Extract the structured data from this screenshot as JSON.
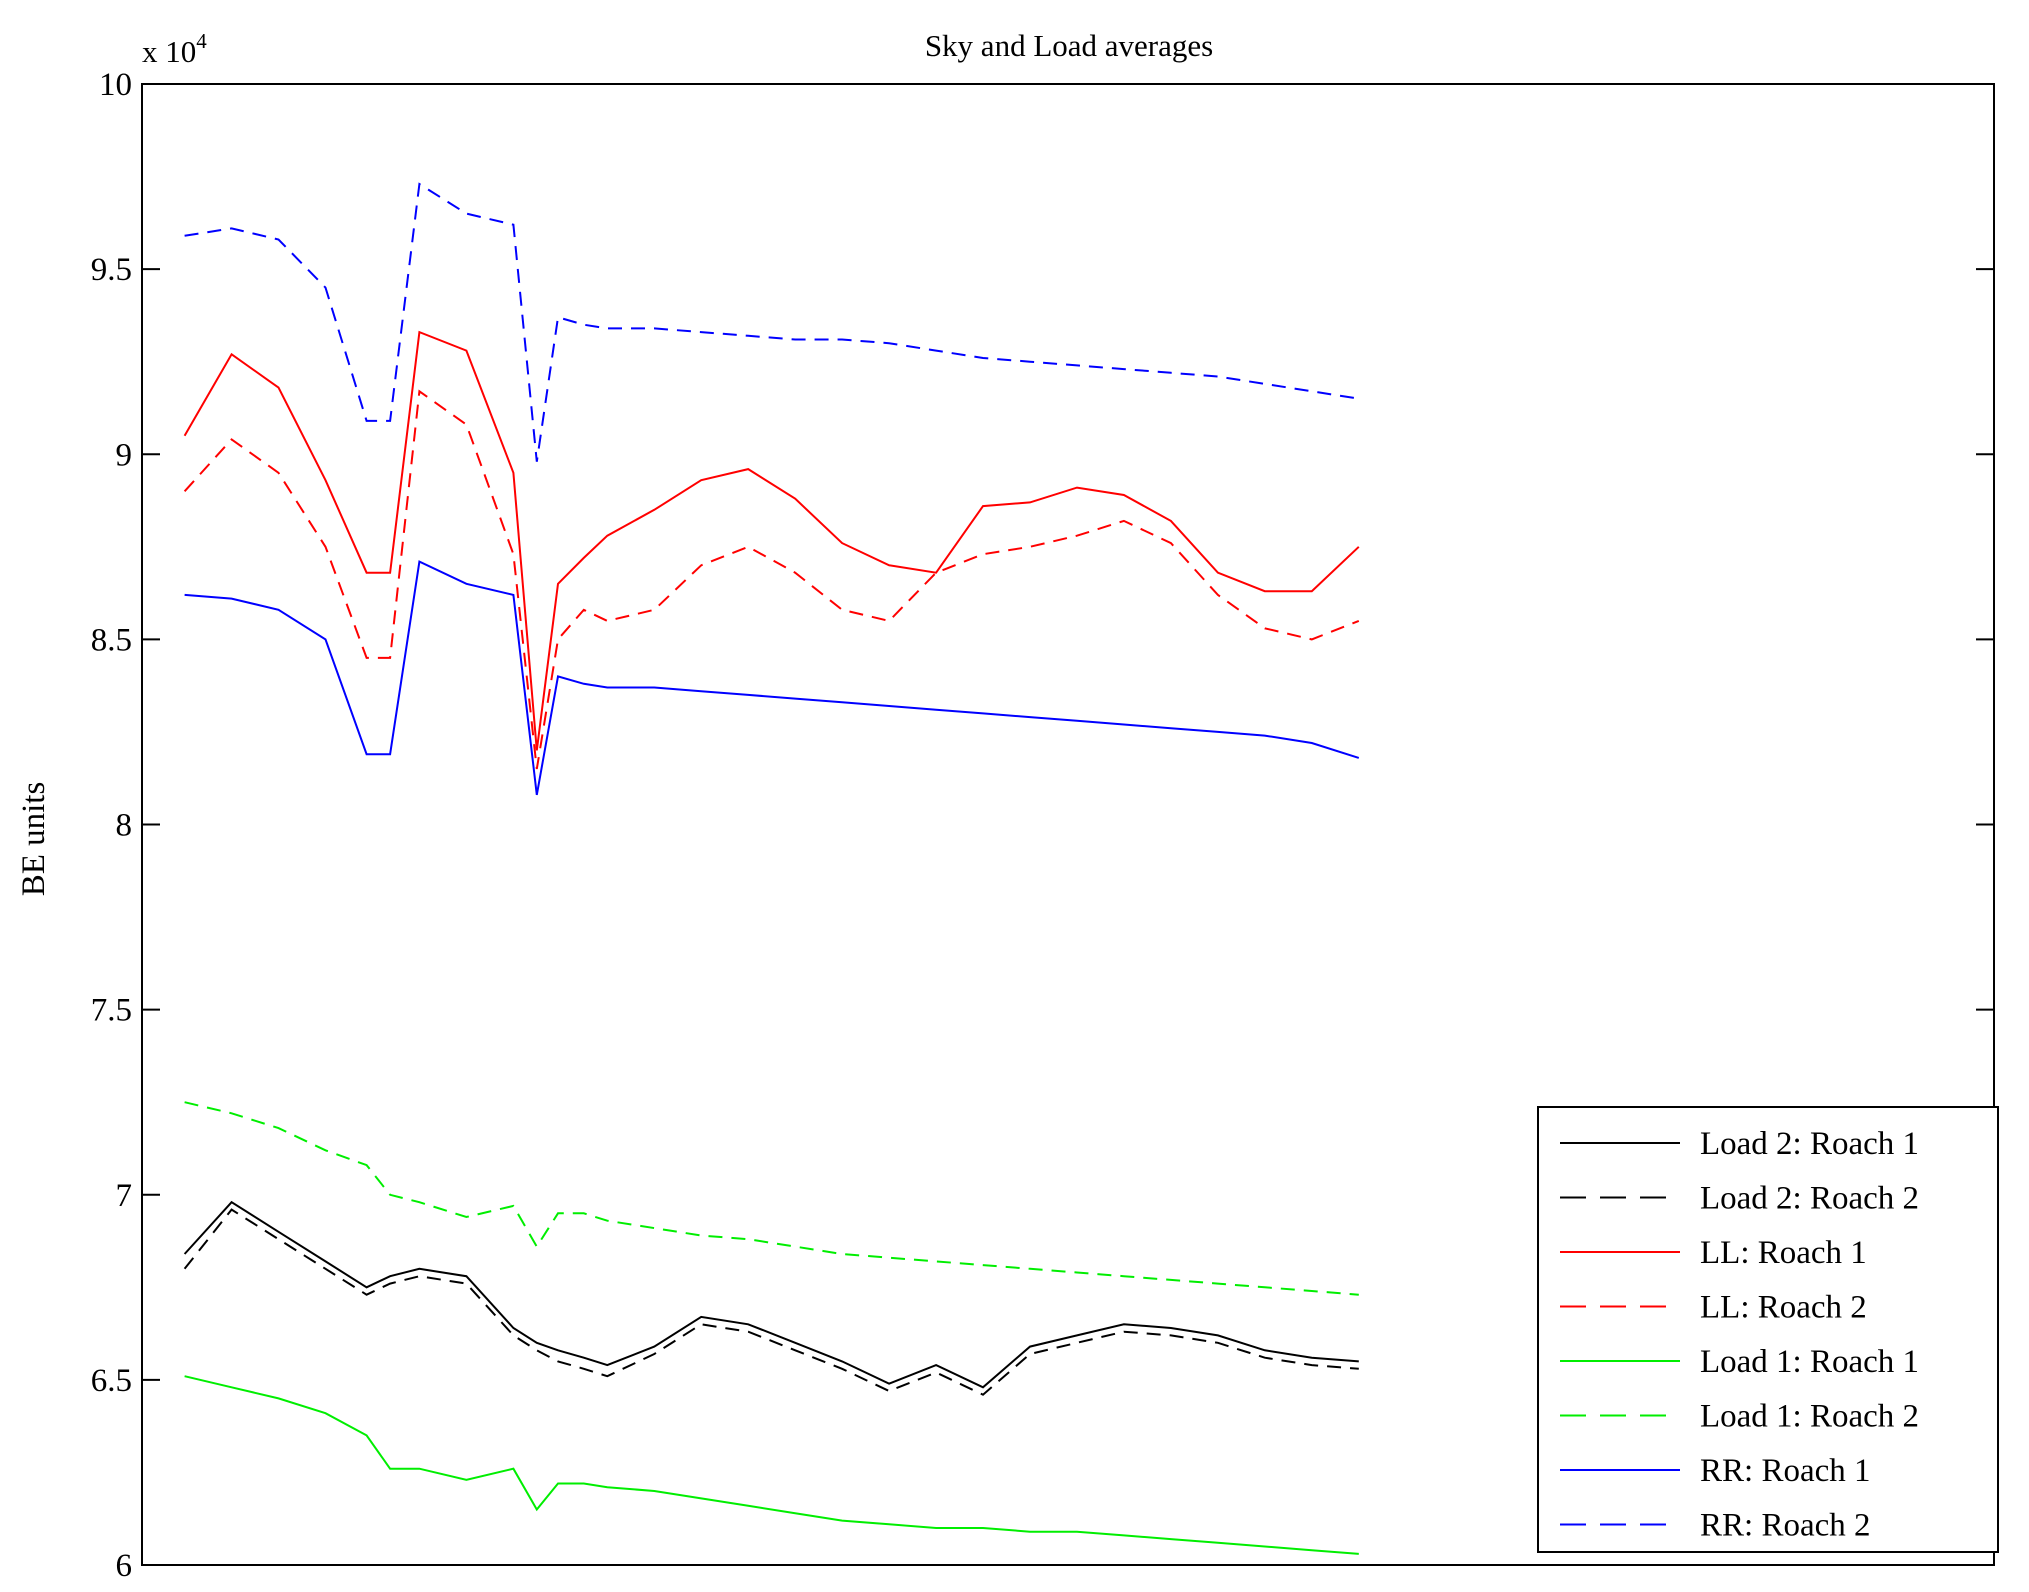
{
  "chart_data": {
    "type": "line",
    "title": "Sky and Load averages",
    "ylabel": "BE units",
    "xlabel": "",
    "ylim": [
      60000,
      100000
    ],
    "y_multiplier_label": "x 10",
    "y_multiplier_exp": "4",
    "yticks": [
      6,
      6.5,
      7,
      7.5,
      8,
      8.5,
      9,
      9.5,
      10
    ],
    "ytick_labels": [
      "6",
      "6.5",
      "7",
      "7.5",
      "8",
      "8.5",
      "9",
      "9.5",
      "10"
    ],
    "xlim": [
      0,
      1
    ],
    "grid": false,
    "legend_position": "bottom-right",
    "x": [
      0.0,
      0.04,
      0.08,
      0.12,
      0.155,
      0.175,
      0.2,
      0.24,
      0.28,
      0.3,
      0.318,
      0.34,
      0.36,
      0.4,
      0.44,
      0.48,
      0.52,
      0.56,
      0.6,
      0.64,
      0.68,
      0.72,
      0.76,
      0.8,
      0.84,
      0.88,
      0.92,
      0.96,
      1.0
    ],
    "series": [
      {
        "name": "Load 2: Roach 1",
        "color": "#000000",
        "dash": "solid",
        "values": [
          68400,
          69800,
          69000,
          68200,
          67500,
          67800,
          68000,
          67800,
          66400,
          66000,
          65800,
          65600,
          65400,
          65900,
          66700,
          66500,
          66000,
          65500,
          64900,
          65400,
          64800,
          65900,
          66200,
          66500,
          66400,
          66200,
          65800,
          65600,
          65500
        ]
      },
      {
        "name": "Load 2: Roach 2",
        "color": "#000000",
        "dash": "dashed",
        "values": [
          68000,
          69600,
          68800,
          68000,
          67300,
          67600,
          67800,
          67600,
          66200,
          65800,
          65500,
          65300,
          65100,
          65700,
          66500,
          66300,
          65800,
          65300,
          64700,
          65200,
          64600,
          65700,
          66000,
          66300,
          66200,
          66000,
          65600,
          65400,
          65300
        ]
      },
      {
        "name": "LL: Roach 1",
        "color": "#ff0000",
        "dash": "solid",
        "values": [
          90500,
          92700,
          91800,
          89300,
          86800,
          86800,
          93300,
          92800,
          89500,
          82000,
          86500,
          87200,
          87800,
          88500,
          89300,
          89600,
          88800,
          87600,
          87000,
          86800,
          88600,
          88700,
          89100,
          88900,
          88200,
          86800,
          86300,
          86300,
          87500
        ]
      },
      {
        "name": "LL: Roach 2",
        "color": "#ff0000",
        "dash": "dashed",
        "values": [
          89000,
          90400,
          89500,
          87500,
          84500,
          84500,
          91700,
          90800,
          87300,
          81500,
          85000,
          85800,
          85500,
          85800,
          87000,
          87500,
          86800,
          85800,
          85500,
          86800,
          87300,
          87500,
          87800,
          88200,
          87600,
          86200,
          85300,
          85000,
          85500
        ]
      },
      {
        "name": "Load 1: Roach 1",
        "color": "#00ee00",
        "dash": "solid",
        "values": [
          65100,
          64800,
          64500,
          64100,
          63500,
          62600,
          62600,
          62300,
          62600,
          61500,
          62200,
          62200,
          62100,
          62000,
          61800,
          61600,
          61400,
          61200,
          61100,
          61000,
          61000,
          60900,
          60900,
          60800,
          60700,
          60600,
          60500,
          60400,
          60300
        ]
      },
      {
        "name": "Load 1: Roach 2",
        "color": "#00ee00",
        "dash": "dashed",
        "values": [
          72500,
          72200,
          71800,
          71200,
          70800,
          70000,
          69800,
          69400,
          69700,
          68600,
          69500,
          69500,
          69300,
          69100,
          68900,
          68800,
          68600,
          68400,
          68300,
          68200,
          68100,
          68000,
          67900,
          67800,
          67700,
          67600,
          67500,
          67400,
          67300
        ]
      },
      {
        "name": "RR: Roach 1",
        "color": "#0000ff",
        "dash": "solid",
        "values": [
          86200,
          86100,
          85800,
          85000,
          81900,
          81900,
          87100,
          86500,
          86200,
          80800,
          84000,
          83800,
          83700,
          83700,
          83600,
          83500,
          83400,
          83300,
          83200,
          83100,
          83000,
          82900,
          82800,
          82700,
          82600,
          82500,
          82400,
          82200,
          81800
        ]
      },
      {
        "name": "RR: Roach 2",
        "color": "#0000ff",
        "dash": "dashed",
        "values": [
          95900,
          96100,
          95800,
          94500,
          90900,
          90900,
          97300,
          96500,
          96200,
          89800,
          93700,
          93500,
          93400,
          93400,
          93300,
          93200,
          93100,
          93100,
          93000,
          92800,
          92600,
          92500,
          92400,
          92300,
          92200,
          92100,
          91900,
          91700,
          91500
        ]
      }
    ]
  }
}
